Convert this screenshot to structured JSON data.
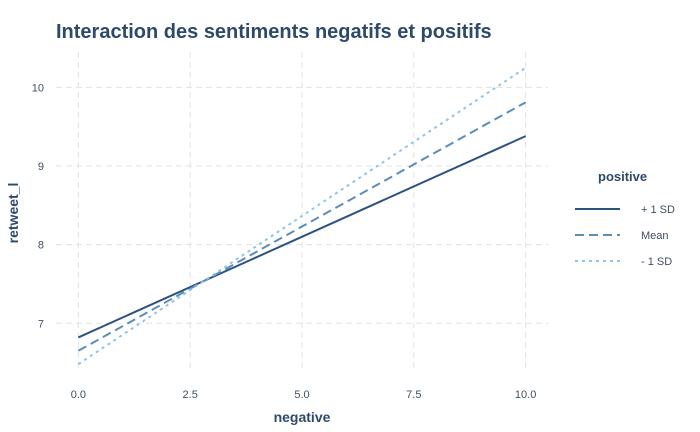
{
  "chart_data": {
    "type": "line",
    "title": "Interaction des sentiments negatifs et positifs",
    "xlabel": "negative",
    "ylabel": "retweet_l",
    "xlim": [
      -0.5,
      10.5
    ],
    "ylim": [
      6.38,
      10.45
    ],
    "xticks": [
      "0.0",
      "2.5",
      "5.0",
      "7.5",
      "10.0"
    ],
    "yticks": [
      "7",
      "8",
      "9",
      "10"
    ],
    "grid": true,
    "legend": {
      "title": "positive",
      "position": "right"
    },
    "series": [
      {
        "name": "+ 1 SD",
        "x": [
          0,
          10
        ],
        "y": [
          6.82,
          9.38
        ],
        "color": "#2c5282",
        "dash": "solid"
      },
      {
        "name": "Mean",
        "x": [
          0,
          10
        ],
        "y": [
          6.65,
          9.81
        ],
        "color": "#5b8db8",
        "dash": "dashed"
      },
      {
        "name": "- 1 SD",
        "x": [
          0,
          10
        ],
        "y": [
          6.48,
          10.25
        ],
        "color": "#8ec5e8",
        "dash": "dotted"
      }
    ]
  }
}
